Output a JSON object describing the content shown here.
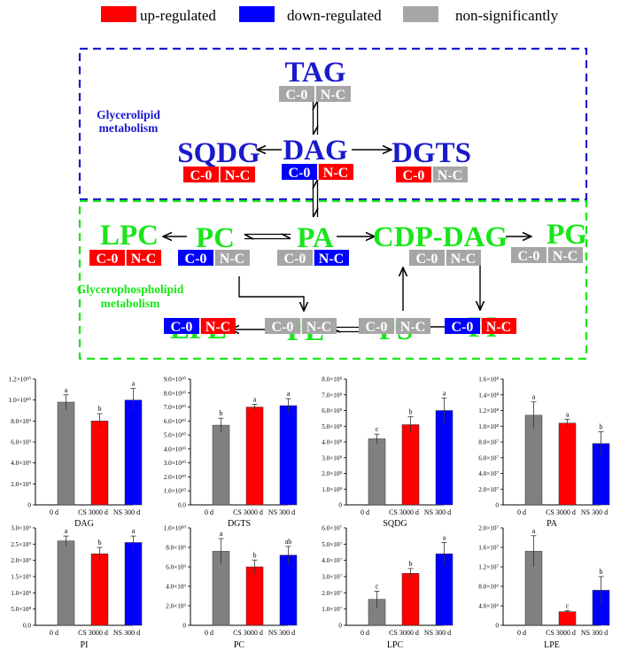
{
  "legend": {
    "items": [
      {
        "label": "up-regulated",
        "color": "#ff0000"
      },
      {
        "label": "down-regulated",
        "color": "#0000ff"
      },
      {
        "label": "non-significantly",
        "color": "#a6a6a6"
      }
    ]
  },
  "colors": {
    "up": "#ff0000",
    "down": "#0000ff",
    "ns": "#a6a6a6",
    "glycerolipid": "#1a1acc",
    "glycerophospholipid": "#19e619"
  },
  "pathway": {
    "regions": [
      {
        "id": "glycerolipid",
        "label_lines": [
          "Glycerolipid",
          "metabolism"
        ]
      },
      {
        "id": "glycerophospholipid",
        "label_lines": [
          "Glycerophospholipid",
          "metabolism"
        ]
      }
    ],
    "status_labels": [
      "C-0",
      "N-C"
    ],
    "nodes": [
      {
        "id": "TAG",
        "label": "TAG",
        "region": "glycerolipid",
        "status": [
          "ns",
          "ns"
        ]
      },
      {
        "id": "DAG",
        "label": "DAG",
        "region": "glycerolipid",
        "status": [
          "down",
          "up"
        ]
      },
      {
        "id": "SQDG",
        "label": "SQDG",
        "region": "glycerolipid",
        "status": [
          "up",
          "up"
        ]
      },
      {
        "id": "DGTS",
        "label": "DGTS",
        "region": "glycerolipid",
        "status": [
          "up",
          "ns"
        ]
      },
      {
        "id": "LPC",
        "label": "LPC",
        "region": "glycerophospholipid",
        "status": [
          "up",
          "up"
        ]
      },
      {
        "id": "PC",
        "label": "PC",
        "region": "glycerophospholipid",
        "status": [
          "down",
          "ns"
        ]
      },
      {
        "id": "PA",
        "label": "PA",
        "region": "glycerophospholipid",
        "status": [
          "ns",
          "down"
        ]
      },
      {
        "id": "CDP-DAG",
        "label": "CDP-DAG",
        "region": "glycerophospholipid",
        "status": [
          "ns",
          "ns"
        ]
      },
      {
        "id": "PG",
        "label": "PG",
        "region": "glycerophospholipid",
        "status": [
          "ns",
          "ns"
        ]
      },
      {
        "id": "LPE",
        "label": "LPE",
        "region": "glycerophospholipid",
        "status": [
          "down",
          "up"
        ]
      },
      {
        "id": "PE",
        "label": "PE",
        "region": "glycerophospholipid",
        "status": [
          "ns",
          "ns"
        ]
      },
      {
        "id": "PS",
        "label": "PS",
        "region": "glycerophospholipid",
        "status": [
          "ns",
          "ns"
        ]
      },
      {
        "id": "PI",
        "label": "PI",
        "region": "glycerophospholipid",
        "status": [
          "down",
          "up"
        ]
      }
    ],
    "edges": [
      {
        "from": "TAG",
        "to": "DAG",
        "type": "reversible"
      },
      {
        "from": "DAG",
        "to": "SQDG",
        "type": "forward"
      },
      {
        "from": "DAG",
        "to": "DGTS",
        "type": "forward"
      },
      {
        "from": "DAG",
        "to": "PA",
        "type": "reversible"
      },
      {
        "from": "PC",
        "to": "LPC",
        "type": "forward"
      },
      {
        "from": "PC",
        "to": "PA",
        "type": "reversible"
      },
      {
        "from": "PA",
        "to": "CDP-DAG",
        "type": "forward"
      },
      {
        "from": "CDP-DAG",
        "to": "PG",
        "type": "forward"
      },
      {
        "from": "PC",
        "to": "PE",
        "type": "forward"
      },
      {
        "from": "PE",
        "to": "LPE",
        "type": "forward"
      },
      {
        "from": "PE",
        "to": "PS",
        "type": "reversible"
      },
      {
        "from": "PS",
        "to": "CDP-DAG",
        "type": "forward"
      },
      {
        "from": "CDP-DAG",
        "to": "PI",
        "type": "forward"
      },
      {
        "from": "PS",
        "to": "PI",
        "type": "forward"
      }
    ]
  },
  "chart_data": [
    {
      "type": "bar",
      "title": "DAG",
      "categories": [
        "0 d",
        "CS 3000 d",
        "NS 300 d"
      ],
      "values": [
        9800000000.0,
        8000000000.0,
        10000000000.0
      ],
      "errors": [
        700000000.0,
        700000000.0,
        1100000000.0
      ],
      "letters": [
        "a",
        "b",
        "a"
      ],
      "colors": [
        "#808080",
        "#ff0000",
        "#0000ff"
      ],
      "ylim": [
        0,
        12000000000.0
      ],
      "yticks": [
        0,
        2000000000.0,
        4000000000.0,
        6000000000.0,
        8000000000.0,
        10000000000.0,
        12000000000.0
      ],
      "ytick_labels": [
        "0",
        "2.0×10⁹",
        "4.0×10⁹",
        "6.0×10⁹",
        "8.0×10⁹",
        "1.0×10¹⁰",
        "1.2×10¹⁰"
      ]
    },
    {
      "type": "bar",
      "title": "DGTS",
      "categories": [
        "0 d",
        "CS 3000 d",
        "NS 300 d"
      ],
      "values": [
        57000000000.0,
        70000000000.0,
        71000000000.0
      ],
      "errors": [
        5000000000.0,
        2000000000.0,
        5000000000.0
      ],
      "letters": [
        "b",
        "a",
        "a"
      ],
      "colors": [
        "#808080",
        "#ff0000",
        "#0000ff"
      ],
      "ylim": [
        0,
        90000000000.0
      ],
      "yticks": [
        0,
        10000000000.0,
        20000000000.0,
        30000000000.0,
        40000000000.0,
        50000000000.0,
        60000000000.0,
        70000000000.0,
        80000000000.0,
        90000000000.0
      ],
      "ytick_labels": [
        "0.0",
        "1.0×10¹⁰",
        "2.0×10¹⁰",
        "3.0×10¹⁰",
        "4.0×10¹⁰",
        "5.0×10¹⁰",
        "6.0×10¹⁰",
        "7.0×10¹⁰",
        "8.0×10¹⁰",
        "9.0×10¹⁰"
      ]
    },
    {
      "type": "bar",
      "title": "SQDG",
      "categories": [
        "0 d",
        "CS 3000 d",
        "NS 300 d"
      ],
      "values": [
        420000000.0,
        510000000.0,
        600000000.0
      ],
      "errors": [
        30000000.0,
        50000000.0,
        80000000.0
      ],
      "letters": [
        "c",
        "b",
        "a"
      ],
      "colors": [
        "#808080",
        "#ff0000",
        "#0000ff"
      ],
      "ylim": [
        0,
        800000000.0
      ],
      "yticks": [
        0,
        100000000.0,
        200000000.0,
        300000000.0,
        400000000.0,
        500000000.0,
        600000000.0,
        700000000.0,
        800000000.0
      ],
      "ytick_labels": [
        "0",
        "1.0×10⁸",
        "2.0×10⁸",
        "3.0×10⁸",
        "4.0×10⁸",
        "5.0×10⁸",
        "6.0×10⁸",
        "7.0×10⁸",
        "8.0×10⁸"
      ]
    },
    {
      "type": "bar",
      "title": "PA",
      "categories": [
        "0 d",
        "CS 3000 d",
        "NS 300 d"
      ],
      "values": [
        114000000.0,
        104000000.0,
        78000000.0
      ],
      "errors": [
        17000000.0,
        5000000.0,
        15000000.0
      ],
      "letters": [
        "a",
        "a",
        "b"
      ],
      "colors": [
        "#808080",
        "#ff0000",
        "#0000ff"
      ],
      "ylim": [
        0,
        160000000.0
      ],
      "yticks": [
        0,
        20000000.0,
        40000000.0,
        60000000.0,
        80000000.0,
        100000000.0,
        120000000.0,
        140000000.0,
        160000000.0
      ],
      "ytick_labels": [
        "0",
        "2.0×10⁷",
        "4.0×10⁷",
        "6.0×10⁷",
        "8.0×10⁷",
        "1.0×10⁸",
        "1.2×10⁸",
        "1.4×10⁸",
        "1.6×10⁸"
      ]
    },
    {
      "type": "bar",
      "title": "PI",
      "categories": [
        "0 d",
        "CS 3000 d",
        "NS 300 d"
      ],
      "values": [
        2600000000.0,
        2200000000.0,
        2550000000.0
      ],
      "errors": [
        150000000.0,
        200000000.0,
        200000000.0
      ],
      "letters": [
        "a",
        "b",
        "a"
      ],
      "colors": [
        "#808080",
        "#ff0000",
        "#0000ff"
      ],
      "ylim": [
        0,
        3000000000.0
      ],
      "yticks": [
        0,
        500000000.0,
        1000000000.0,
        1500000000.0,
        2000000000.0,
        2500000000.0,
        3000000000.0
      ],
      "ytick_labels": [
        "0.0",
        "5.0×10⁸",
        "1.0×10⁹",
        "1.5×10⁹",
        "2.0×10⁹",
        "2.5×10⁹",
        "3.0×10⁹"
      ]
    },
    {
      "type": "bar",
      "title": "PC",
      "categories": [
        "0 d",
        "CS 3000 d",
        "NS 300 d"
      ],
      "values": [
        7600000000.0,
        6000000000.0,
        7200000000.0
      ],
      "errors": [
        1300000000.0,
        700000000.0,
        900000000.0
      ],
      "letters": [
        "a",
        "b",
        "ab"
      ],
      "colors": [
        "#808080",
        "#ff0000",
        "#0000ff"
      ],
      "ylim": [
        0,
        10000000000.0
      ],
      "yticks": [
        0,
        2000000000.0,
        4000000000.0,
        6000000000.0,
        8000000000.0,
        10000000000.0
      ],
      "ytick_labels": [
        "0",
        "2.0×10⁹",
        "4.0×10⁹",
        "6.0×10⁹",
        "8.0×10⁹",
        "1.0×10¹⁰"
      ]
    },
    {
      "type": "bar",
      "title": "LPC",
      "categories": [
        "0 d",
        "CS 3000 d",
        "NS 300 d"
      ],
      "values": [
        16000000.0,
        32000000.0,
        44000000.0
      ],
      "errors": [
        5000000.0,
        3000000.0,
        7000000.0
      ],
      "letters": [
        "c",
        "b",
        "a"
      ],
      "colors": [
        "#808080",
        "#ff0000",
        "#0000ff"
      ],
      "ylim": [
        0,
        60000000.0
      ],
      "yticks": [
        0,
        10000000.0,
        20000000.0,
        30000000.0,
        40000000.0,
        50000000.0,
        60000000.0
      ],
      "ytick_labels": [
        "0",
        "1.0×10⁷",
        "2.0×10⁷",
        "3.0×10⁷",
        "4.0×10⁷",
        "5.0×10⁷",
        "6.0×10⁷"
      ]
    },
    {
      "type": "bar",
      "title": "LPE",
      "categories": [
        "0 d",
        "CS 3000 d",
        "NS 300 d"
      ],
      "values": [
        15200000.0,
        2800000.0,
        7200000.0
      ],
      "errors": [
        3200000.0,
        200000.0,
        2800000.0
      ],
      "letters": [
        "a",
        "c",
        "b"
      ],
      "colors": [
        "#808080",
        "#ff0000",
        "#0000ff"
      ],
      "ylim": [
        0,
        20000000.0
      ],
      "yticks": [
        0,
        4000000.0,
        8000000.0,
        12000000.0,
        16000000.0,
        20000000.0
      ],
      "ytick_labels": [
        "0",
        "4.0×10⁶",
        "8.0×10⁶",
        "1.2×10⁷",
        "1.6×10⁷",
        "2.0×10⁷"
      ]
    }
  ]
}
